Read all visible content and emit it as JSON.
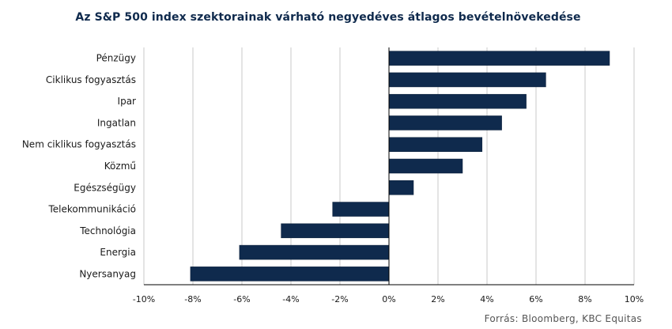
{
  "chart_data": {
    "type": "bar",
    "orientation": "horizontal",
    "title": "Az S&P 500 index szektorainak várható negyedéves átlagos bevételnövekedése",
    "categories": [
      "Pénzügy",
      "Ciklikus fogyasztás",
      "Ipar",
      "Ingatlan",
      "Nem ciklikus fogyasztás",
      "Közmű",
      "Egészségügy",
      "Telekommunikáció",
      "Technológia",
      "Energia",
      "Nyersanyag"
    ],
    "values": [
      9.0,
      6.4,
      5.6,
      4.6,
      3.8,
      3.0,
      1.0,
      -2.3,
      -4.4,
      -6.1,
      -8.1
    ],
    "xlim": [
      -10,
      10
    ],
    "xticks": [
      -10,
      -8,
      -6,
      -4,
      -2,
      0,
      2,
      4,
      6,
      8,
      10
    ],
    "xtick_labels": [
      "-10%",
      "-8%",
      "-6%",
      "-4%",
      "-2%",
      "0%",
      "2%",
      "4%",
      "6%",
      "8%",
      "10%"
    ],
    "grid": true,
    "bar_color": "#0f2a4d",
    "source": "Forrás: Bloomberg, KBC Equitas"
  }
}
